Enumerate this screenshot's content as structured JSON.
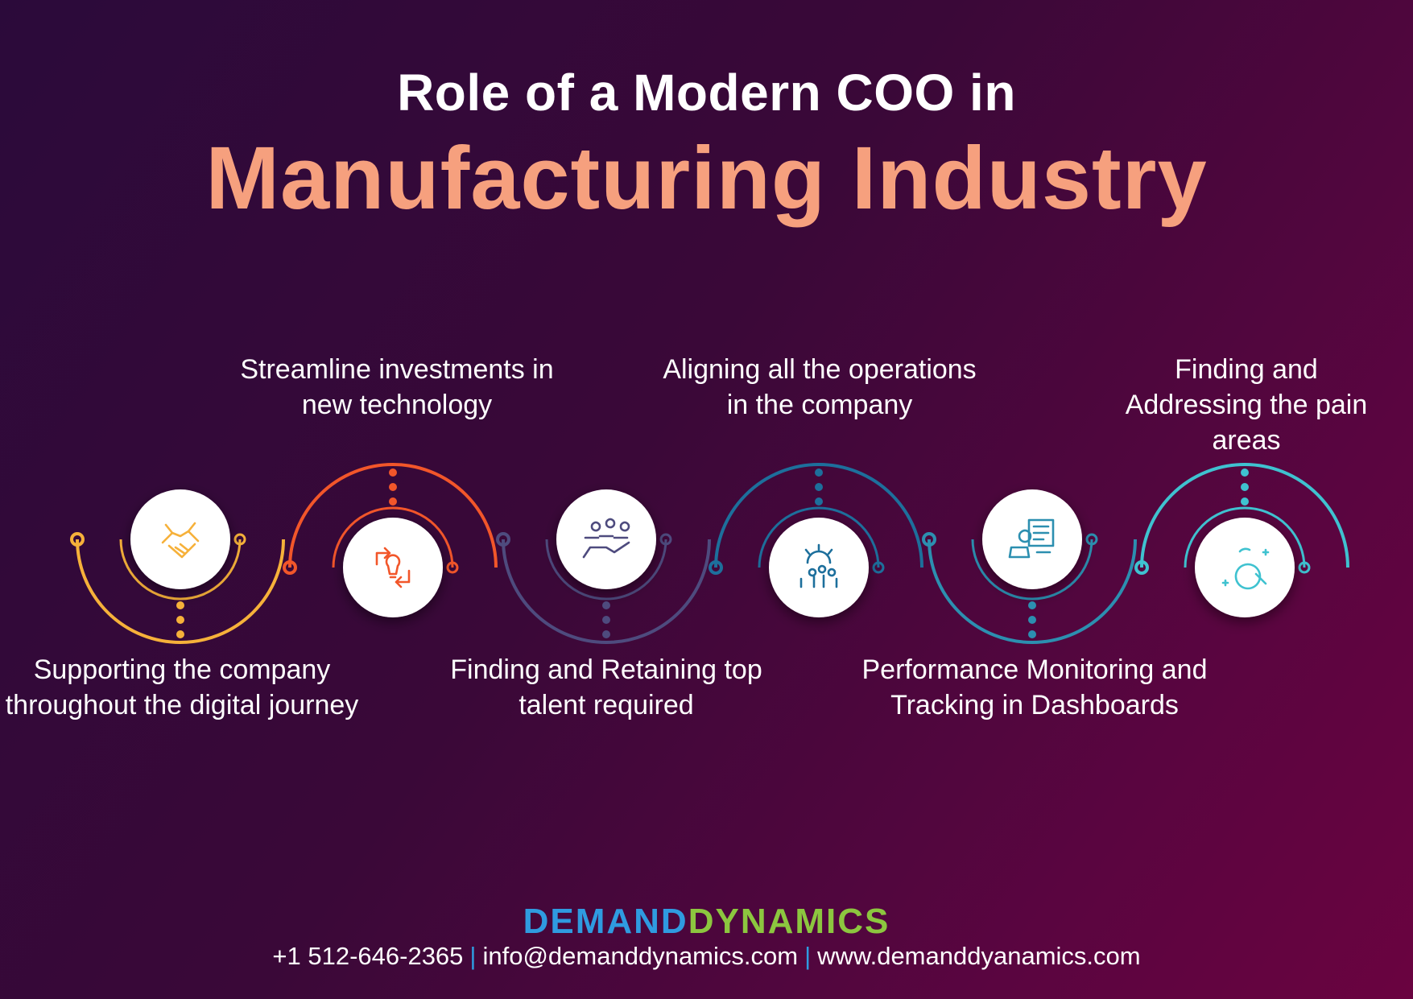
{
  "title": {
    "line1": "Role of a Modern COO in",
    "line2": "Manufacturing Industry"
  },
  "steps": [
    {
      "label": "Supporting the company throughout the digital journey",
      "icon": "handshake-icon",
      "color": "#f6b13a"
    },
    {
      "label": "Streamline investments in new technology",
      "icon": "tech-investment-icon",
      "color": "#f2562a"
    },
    {
      "label": "Finding and Retaining top talent required",
      "icon": "talent-hand-icon",
      "color": "#4e4b7e"
    },
    {
      "label": "Aligning all the operations in the company",
      "icon": "gear-team-icon",
      "color": "#1d6f9c"
    },
    {
      "label": "Performance Monitoring and Tracking in Dashboards",
      "icon": "dashboard-monitor-icon",
      "color": "#2c8fb0"
    },
    {
      "label": "Finding and Addressing the pain areas",
      "icon": "magnifier-icon",
      "color": "#3fc2d0"
    }
  ],
  "footer": {
    "logo_part1": "DEMAND",
    "logo_part2": "DYNAMICS",
    "logo_color1": "#2f9be0",
    "logo_color2": "#8cc63f",
    "phone": "+1 512-646-2365",
    "separator": "|",
    "email": "info@demanddynamics.com",
    "website": "www.demanddyanamics.com"
  }
}
